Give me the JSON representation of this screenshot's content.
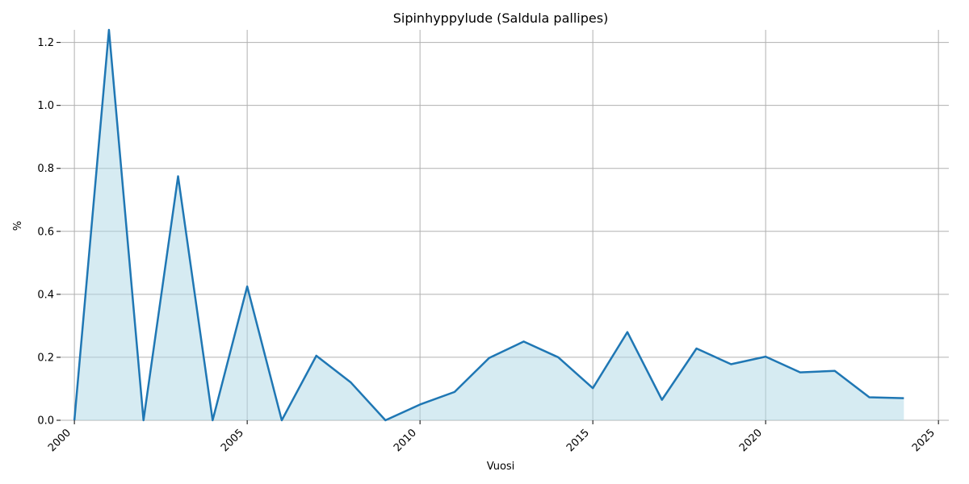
{
  "chart_data": {
    "type": "area",
    "title": "Sipinhyppylude (Saldula pallipes)",
    "xlabel": "Vuosi",
    "ylabel": "%",
    "xlim": [
      1999.6,
      2025.3
    ],
    "ylim": [
      0,
      1.24
    ],
    "x_ticks": [
      2000,
      2005,
      2010,
      2015,
      2020,
      2025
    ],
    "y_ticks": [
      0.0,
      0.2,
      0.4,
      0.6,
      0.8,
      1.0,
      1.2
    ],
    "x_tick_labels": [
      "2000",
      "2005",
      "2010",
      "2015",
      "2020",
      "2025"
    ],
    "y_tick_labels": [
      "0.0",
      "0.2",
      "0.4",
      "0.6",
      "0.8",
      "1.0",
      "1.2"
    ],
    "grid": true,
    "series": [
      {
        "line_color": "#1f77b4",
        "fill_color": "#add8e6",
        "x": [
          2000,
          2001,
          2002,
          2003,
          2004,
          2005,
          2006,
          2007,
          2008,
          2009,
          2010,
          2011,
          2012,
          2013,
          2014,
          2015,
          2016,
          2017,
          2018,
          2019,
          2020,
          2021,
          2022,
          2023,
          2024
        ],
        "y": [
          0.0,
          1.24,
          0.0,
          0.775,
          0.0,
          0.425,
          0.0,
          0.205,
          0.12,
          0.0,
          0.05,
          0.09,
          0.198,
          0.25,
          0.2,
          0.102,
          0.28,
          0.065,
          0.228,
          0.178,
          0.202,
          0.152,
          0.157,
          0.073,
          0.07
        ]
      }
    ]
  }
}
